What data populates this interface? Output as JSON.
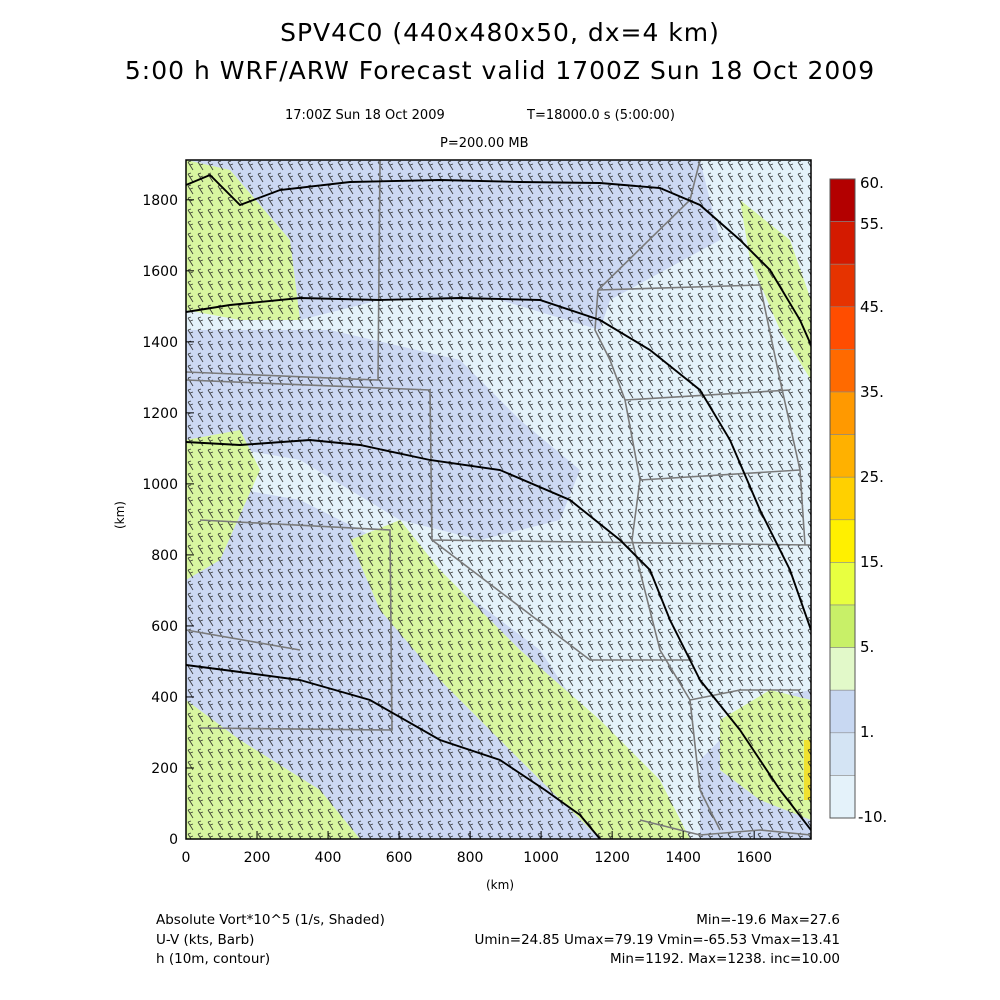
{
  "header": {
    "title_line1": "SPV4C0 (440x480x50, dx=4 km)",
    "title_line2": "5:00 h WRF/ARW Forecast valid 1700Z Sun 18 Oct 2009",
    "valid_time": "17:00Z Sun 18 Oct 2009",
    "elapsed": "T=18000.0 s (5:00:00)",
    "level": "P=200.00 MB"
  },
  "axes": {
    "x_label": "(km)",
    "y_label": "(km)",
    "x_ticks": [
      "0",
      "200",
      "400",
      "600",
      "800",
      "1000",
      "1200",
      "1400",
      "1600"
    ],
    "y_ticks": [
      "0",
      "200",
      "400",
      "600",
      "800",
      "1000",
      "1200",
      "1400",
      "1600",
      "1800"
    ],
    "x_range": [
      0,
      1760
    ],
    "y_range": [
      0,
      1920
    ]
  },
  "colorbar": {
    "labels": [
      "60.",
      "55.",
      "45.",
      "35.",
      "25.",
      "15.",
      "5.",
      "1.",
      "-10."
    ],
    "colors": [
      "#b30000",
      "#d41a00",
      "#e63300",
      "#ff4d00",
      "#ff6a00",
      "#ff9900",
      "#ffb100",
      "#ffd000",
      "#fff000",
      "#e8ff40",
      "#c8f068",
      "#e2f9c9",
      "#c8d8f2",
      "#d4e4f4",
      "#e4f2fa"
    ]
  },
  "fields": {
    "shaded": "Absolute Vort*10^5 (1/s, Shaded)",
    "shaded_stats": "Min=-19.6 Max=27.6",
    "barbs": "U-V (kts, Barb)",
    "barb_stats": "Umin=24.85 Umax=79.19 Vmin=-65.53 Vmax=13.41",
    "contour": "h (10m, contour)",
    "contour_stats": "Min=1192. Max=1238. inc=10.00"
  },
  "colors": {
    "background": "#ffffff",
    "vort_low": "#e4f2fa",
    "vort_mid": "#c8d8f2",
    "vort_high": "#c8f068",
    "border_gray": "#7a7a7a",
    "contour": "#000000"
  }
}
